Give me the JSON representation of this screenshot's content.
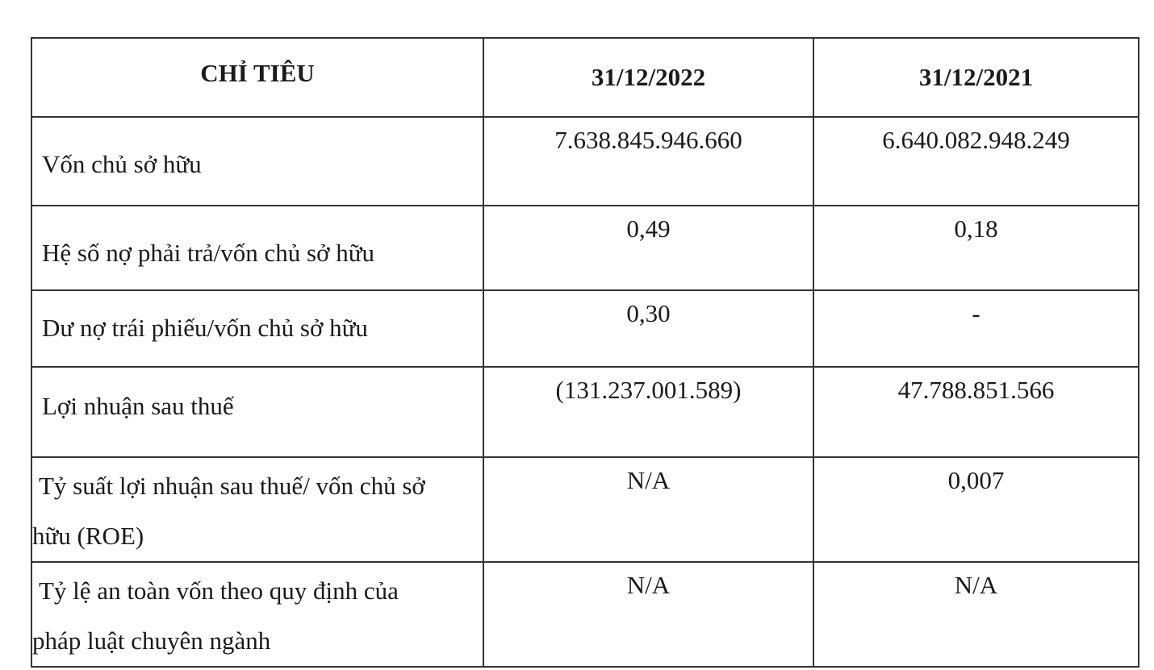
{
  "table": {
    "headers": [
      "CHỈ TIÊU",
      "31/12/2022",
      "31/12/2021"
    ],
    "rows": [
      {
        "label": "Vốn chủ sở hữu",
        "v2022": "7.638.845.946.660",
        "v2021": "6.640.082.948.249"
      },
      {
        "label": "Hệ số nợ phải trả/vốn chủ sở hữu",
        "v2022": "0,49",
        "v2021": "0,18"
      },
      {
        "label": "Dư nợ trái phiếu/vốn chủ sở hữu",
        "v2022": "0,30",
        "v2021": "-"
      },
      {
        "label": "Lợi nhuận sau thuế",
        "v2022": "(131.237.001.589)",
        "v2021": "47.788.851.566"
      },
      {
        "label_line1": "Tỷ suất lợi nhuận sau thuế/ vốn chủ sở",
        "label_line2": "hữu (ROE)",
        "v2022": "N/A",
        "v2021": "0,007"
      },
      {
        "label_line1": "Tỷ lệ an toàn vốn theo quy định của",
        "label_line2": "pháp luật chuyên ngành",
        "v2022": "N/A",
        "v2021": "N/A"
      }
    ]
  }
}
